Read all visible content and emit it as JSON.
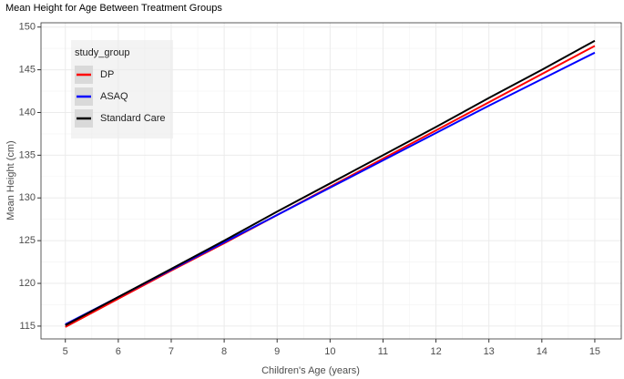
{
  "chart_data": {
    "type": "line",
    "title": "Mean Height for Age Between Treatment Groups",
    "x_label": "Children's Age (years)",
    "y_label": "Mean Height (cm)",
    "x": [
      5,
      6,
      7,
      8,
      9,
      10,
      11,
      12,
      13,
      14,
      15
    ],
    "series": [
      {
        "name": "DP",
        "color": "#ff0000",
        "values": [
          114.9,
          118.2,
          121.5,
          124.7,
          128.0,
          131.3,
          134.6,
          137.9,
          141.2,
          144.5,
          147.8
        ]
      },
      {
        "name": "ASAQ",
        "color": "#0000ff",
        "values": [
          115.2,
          118.4,
          121.6,
          124.8,
          128.0,
          131.2,
          134.4,
          137.6,
          140.8,
          143.9,
          147.0
        ]
      },
      {
        "name": "Standard Care",
        "color": "#000000",
        "values": [
          115.1,
          118.4,
          121.7,
          125.0,
          128.4,
          131.7,
          135.0,
          138.3,
          141.7,
          145.0,
          148.4
        ]
      }
    ],
    "legend_title": "study_group",
    "legend_position": "top-left",
    "xlim": [
      4.54,
      15.5
    ],
    "xticks": [
      5,
      6,
      7,
      8,
      9,
      10,
      11,
      12,
      13,
      14,
      15
    ],
    "ylim": [
      113.5,
      150.5
    ],
    "yticks": [
      115,
      120,
      125,
      130,
      135,
      140,
      145,
      150
    ],
    "grid": true
  }
}
